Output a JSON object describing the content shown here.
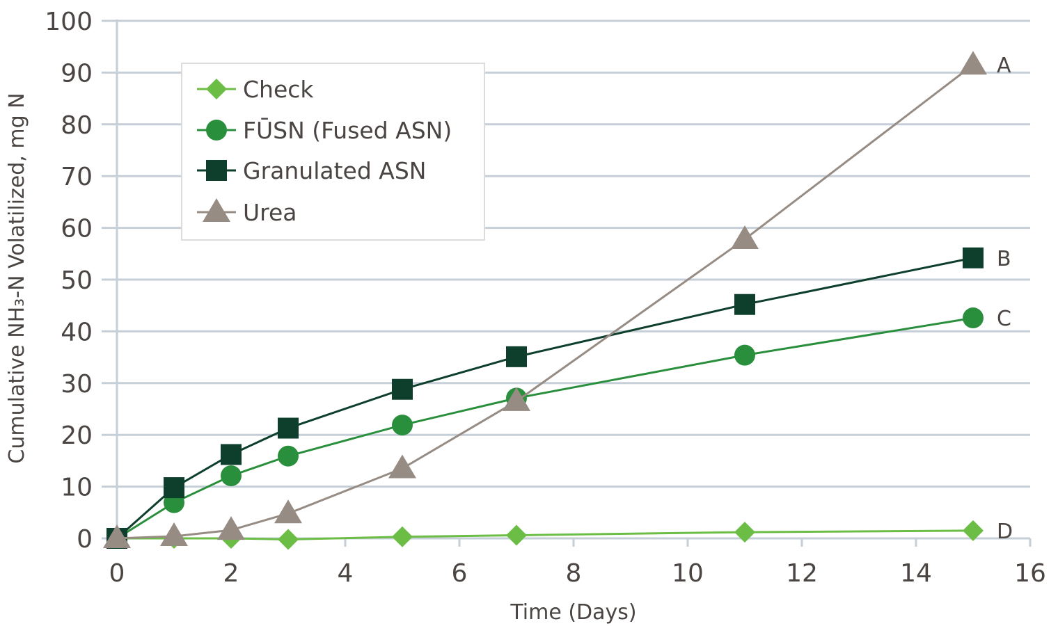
{
  "chart_data": {
    "type": "line",
    "xlabel": "Time (Days)",
    "ylabel": "Cumulative NH₃-N Volatilized, mg N",
    "xlim": [
      0,
      16
    ],
    "ylim": [
      0,
      100
    ],
    "x_ticks": [
      "0",
      "2",
      "4",
      "6",
      "8",
      "10",
      "12",
      "14",
      "16"
    ],
    "y_ticks": [
      "0",
      "10",
      "20",
      "30",
      "40",
      "50",
      "60",
      "70",
      "80",
      "90",
      "100"
    ],
    "grid": "horizontal",
    "legend_position": "top-left",
    "series": [
      {
        "name": "Check",
        "marker": "diamond",
        "color": "#6cbd45",
        "end_label": "D",
        "x": [
          0,
          1,
          2,
          3,
          5,
          7,
          11,
          15
        ],
        "y": [
          0,
          0,
          0,
          -0.2,
          0.3,
          0.6,
          1.2,
          1.5
        ]
      },
      {
        "name": "FŪSN (Fused ASN)",
        "marker": "circle",
        "color": "#2a8f3c",
        "end_label": "C",
        "x": [
          0,
          1,
          2,
          3,
          5,
          7,
          11,
          15
        ],
        "y": [
          0,
          6.9,
          12.1,
          15.9,
          21.9,
          27.1,
          35.4,
          42.6
        ]
      },
      {
        "name": "Granulated ASN",
        "marker": "square",
        "color": "#0d3f2c",
        "end_label": "B",
        "x": [
          0,
          1,
          2,
          3,
          5,
          7,
          11,
          15
        ],
        "y": [
          0,
          9.8,
          16.2,
          21.3,
          28.8,
          35.1,
          45.2,
          54.2
        ]
      },
      {
        "name": "Urea",
        "marker": "triangle",
        "color": "#978c84",
        "end_label": "A",
        "x": [
          0,
          1,
          2,
          3,
          5,
          7,
          11,
          15
        ],
        "y": [
          0,
          0.4,
          1.6,
          4.8,
          13.5,
          26.5,
          57.8,
          91.5
        ]
      }
    ]
  }
}
